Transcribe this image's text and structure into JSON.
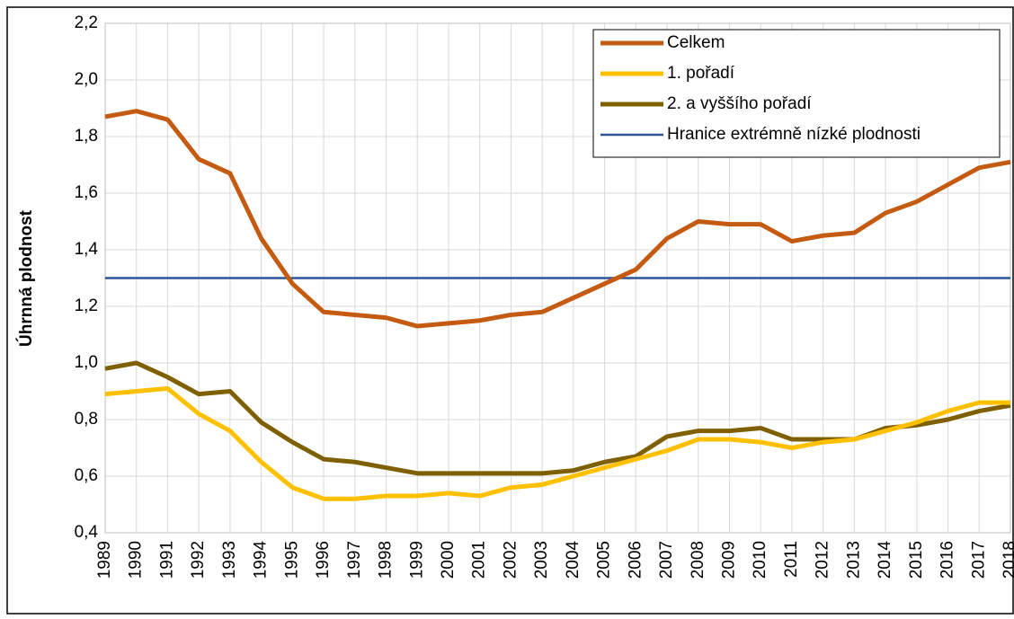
{
  "chart_data": {
    "type": "line",
    "y_label": "Úhrnná plodnost",
    "categories": [
      "1989",
      "1990",
      "1991",
      "1992",
      "1993",
      "1994",
      "1995",
      "1996",
      "1997",
      "1998",
      "1999",
      "2000",
      "2001",
      "2002",
      "2003",
      "2004",
      "2005",
      "2006",
      "2007",
      "2008",
      "2009",
      "2010",
      "2011",
      "2012",
      "2013",
      "2014",
      "2015",
      "2016",
      "2017",
      "2018"
    ],
    "series": [
      {
        "name": "Celkem",
        "color": "#c55a11",
        "values": [
          1.87,
          1.89,
          1.86,
          1.72,
          1.67,
          1.44,
          1.28,
          1.18,
          1.17,
          1.16,
          1.13,
          1.14,
          1.15,
          1.17,
          1.18,
          1.23,
          1.28,
          1.33,
          1.44,
          1.5,
          1.49,
          1.49,
          1.43,
          1.45,
          1.46,
          1.53,
          1.57,
          1.63,
          1.69,
          1.71
        ]
      },
      {
        "name": "1. pořadí",
        "color": "#ffc000",
        "values": [
          0.89,
          0.9,
          0.91,
          0.82,
          0.76,
          0.65,
          0.56,
          0.52,
          0.52,
          0.53,
          0.53,
          0.54,
          0.53,
          0.56,
          0.57,
          0.6,
          0.63,
          0.66,
          0.69,
          0.73,
          0.73,
          0.72,
          0.7,
          0.72,
          0.73,
          0.76,
          0.79,
          0.83,
          0.86,
          0.86
        ]
      },
      {
        "name": "2. a vyššího pořadí",
        "color": "#7f6000",
        "values": [
          0.98,
          1.0,
          0.95,
          0.89,
          0.9,
          0.79,
          0.72,
          0.66,
          0.65,
          0.63,
          0.61,
          0.61,
          0.61,
          0.61,
          0.61,
          0.62,
          0.65,
          0.67,
          0.74,
          0.76,
          0.76,
          0.77,
          0.73,
          0.73,
          0.73,
          0.77,
          0.78,
          0.8,
          0.83,
          0.85
        ]
      }
    ],
    "hline": {
      "name": "Hranice extrémně nízké plodnosti",
      "color": "#2f5597",
      "value": 1.3
    },
    "ylim": [
      0.4,
      2.2
    ],
    "yticks": [
      {
        "value": 0.4,
        "label": "0,4"
      },
      {
        "value": 0.6,
        "label": "0,6"
      },
      {
        "value": 0.8,
        "label": "0,8"
      },
      {
        "value": 1.0,
        "label": "1,0"
      },
      {
        "value": 1.2,
        "label": "1,2"
      },
      {
        "value": 1.4,
        "label": "1,4"
      },
      {
        "value": 1.6,
        "label": "1,6"
      },
      {
        "value": 1.8,
        "label": "1,8"
      },
      {
        "value": 2.0,
        "label": "2,0"
      },
      {
        "value": 2.2,
        "label": "2,2"
      }
    ],
    "grid": true,
    "legend": "top-right"
  }
}
